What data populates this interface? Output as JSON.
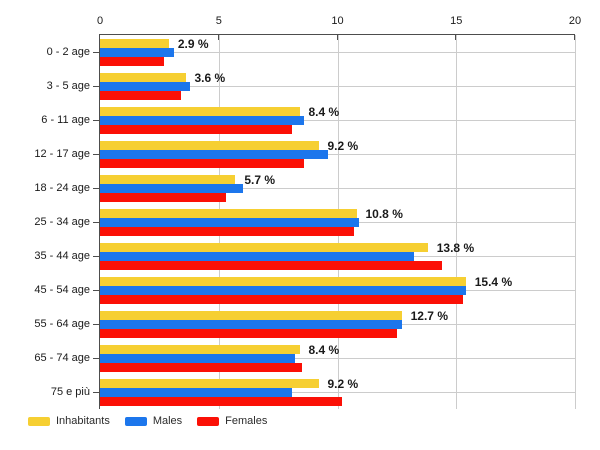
{
  "chart_data": {
    "type": "bar",
    "orientation": "horizontal",
    "title": "",
    "xlabel": "",
    "ylabel": "",
    "xlim": [
      0,
      20
    ],
    "x_ticks": [
      0,
      5,
      10,
      15,
      20
    ],
    "grid": true,
    "legend_position": "bottom-left",
    "categories": [
      "0 - 2 age",
      "3 - 5 age",
      "6 - 11 age",
      "12 - 17 age",
      "18 - 24 age",
      "25 - 34 age",
      "35 - 44 age",
      "45 - 54 age",
      "55 - 64 age",
      "65 - 74 age",
      "75 e più"
    ],
    "series": [
      {
        "name": "Inhabitants",
        "color": "#F6CF32",
        "values": [
          2.9,
          3.6,
          8.4,
          9.2,
          5.7,
          10.8,
          13.8,
          15.4,
          12.7,
          8.4,
          9.2
        ]
      },
      {
        "name": "Males",
        "color": "#1C76EC",
        "values": [
          3.1,
          3.8,
          8.6,
          9.6,
          6.0,
          10.9,
          13.2,
          15.4,
          12.7,
          8.2,
          8.1
        ]
      },
      {
        "name": "Females",
        "color": "#FB1006",
        "values": [
          2.7,
          3.4,
          8.1,
          8.6,
          5.3,
          10.7,
          14.4,
          15.3,
          12.5,
          8.5,
          10.2
        ]
      }
    ],
    "value_labels": [
      "2.9 %",
      "3.6 %",
      "8.4 %",
      "9.2 %",
      "5.7 %",
      "10.8 %",
      "13.8 %",
      "15.4 %",
      "12.7 %",
      "8.4 %",
      "9.2 %"
    ]
  },
  "legend": {
    "items": [
      {
        "label": "Inhabitants",
        "color": "#F6CF32"
      },
      {
        "label": "Males",
        "color": "#1C76EC"
      },
      {
        "label": "Females",
        "color": "#FB1006"
      }
    ]
  },
  "colors": {
    "grid": "#cccccc",
    "axis": "#4d4d4d",
    "text": "#1a1a1a",
    "background": "#ffffff"
  }
}
